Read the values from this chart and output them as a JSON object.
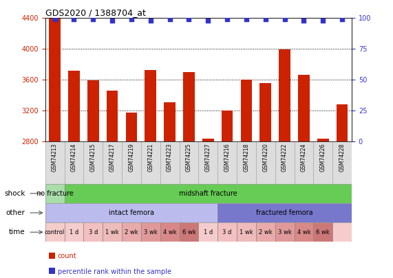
{
  "title": "GDS2020 / 1388704_at",
  "samples": [
    "GSM74213",
    "GSM74214",
    "GSM74215",
    "GSM74217",
    "GSM74219",
    "GSM74221",
    "GSM74223",
    "GSM74225",
    "GSM74227",
    "GSM74216",
    "GSM74218",
    "GSM74220",
    "GSM74222",
    "GSM74224",
    "GSM74226",
    "GSM74228"
  ],
  "bar_values": [
    4390,
    3720,
    3590,
    3460,
    3170,
    3730,
    3310,
    3700,
    2840,
    3200,
    3600,
    3560,
    3990,
    3660,
    2840,
    3280
  ],
  "percentile_values": [
    99,
    99,
    99,
    98,
    99,
    98,
    99,
    99,
    98,
    99,
    99,
    99,
    99,
    98,
    98,
    99
  ],
  "bar_color": "#cc2200",
  "percentile_color": "#3333cc",
  "ylim_left": [
    2800,
    4400
  ],
  "ylim_right": [
    0,
    100
  ],
  "yticks_left": [
    2800,
    3200,
    3600,
    4000,
    4400
  ],
  "yticks_right": [
    0,
    25,
    50,
    75,
    100
  ],
  "shock_labels": [
    {
      "text": "no fracture",
      "start": 0,
      "end": 1,
      "color": "#aaddaa"
    },
    {
      "text": "midshaft fracture",
      "start": 1,
      "end": 16,
      "color": "#66cc55"
    }
  ],
  "other_labels": [
    {
      "text": "intact femora",
      "start": 0,
      "end": 9,
      "color": "#bbbbee"
    },
    {
      "text": "fractured femora",
      "start": 9,
      "end": 16,
      "color": "#7777cc"
    }
  ],
  "time_labels": [
    {
      "text": "control",
      "start": 0,
      "end": 1,
      "color": "#f5cccc"
    },
    {
      "text": "1 d",
      "start": 1,
      "end": 2,
      "color": "#f5cccc"
    },
    {
      "text": "3 d",
      "start": 2,
      "end": 3,
      "color": "#f2c0c0"
    },
    {
      "text": "1 wk",
      "start": 3,
      "end": 4,
      "color": "#eebbbb"
    },
    {
      "text": "2 wk",
      "start": 4,
      "end": 5,
      "color": "#e8aaaa"
    },
    {
      "text": "3 wk",
      "start": 5,
      "end": 6,
      "color": "#e09999"
    },
    {
      "text": "4 wk",
      "start": 6,
      "end": 7,
      "color": "#d98888"
    },
    {
      "text": "6 wk",
      "start": 7,
      "end": 8,
      "color": "#cc7777"
    },
    {
      "text": "1 d",
      "start": 8,
      "end": 9,
      "color": "#f5cccc"
    },
    {
      "text": "3 d",
      "start": 9,
      "end": 10,
      "color": "#f2c0c0"
    },
    {
      "text": "1 wk",
      "start": 10,
      "end": 11,
      "color": "#eebbbb"
    },
    {
      "text": "2 wk",
      "start": 11,
      "end": 12,
      "color": "#e8aaaa"
    },
    {
      "text": "3 wk",
      "start": 12,
      "end": 13,
      "color": "#e09999"
    },
    {
      "text": "4 wk",
      "start": 13,
      "end": 14,
      "color": "#d98888"
    },
    {
      "text": "6 wk",
      "start": 14,
      "end": 15,
      "color": "#cc7777"
    },
    {
      "text": "",
      "start": 15,
      "end": 16,
      "color": "#f5cccc"
    }
  ],
  "row_labels": [
    "shock",
    "other",
    "time"
  ],
  "bg_color": "#ffffff",
  "axis_label_color_left": "#cc2200",
  "axis_label_color_right": "#3333cc",
  "grid_color": "#000000",
  "sample_bg_color": "#dddddd",
  "legend_items": [
    {
      "color": "#cc2200",
      "label": "count"
    },
    {
      "color": "#3333cc",
      "label": "percentile rank within the sample"
    }
  ]
}
